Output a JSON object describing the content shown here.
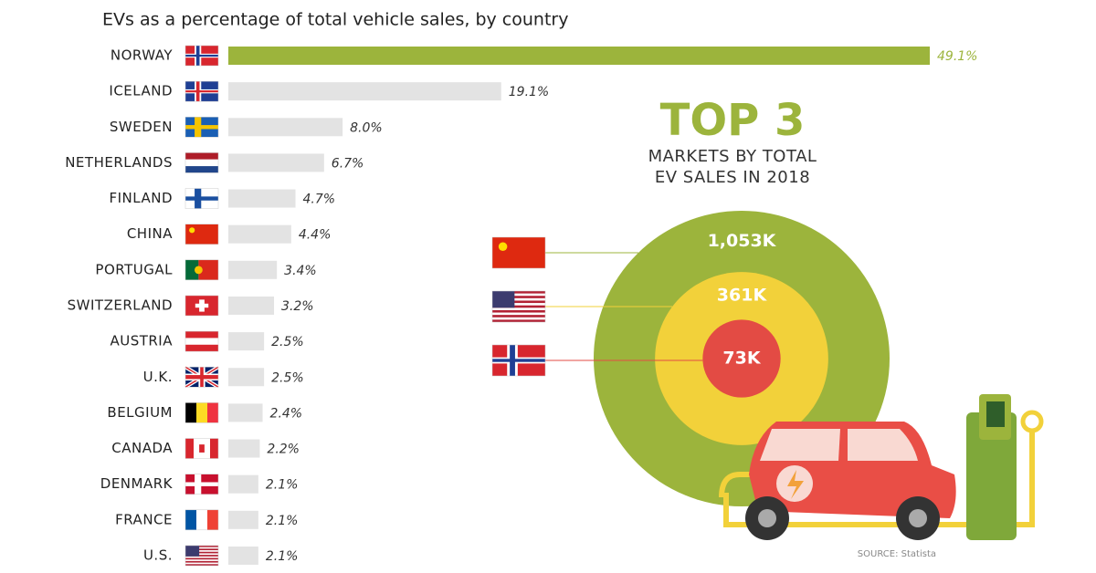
{
  "chart_data": [
    {
      "type": "hbar",
      "title": "EVs as a percentage of total vehicle sales, by country",
      "categories": [
        "NORWAY",
        "ICELAND",
        "SWEDEN",
        "NETHERLANDS",
        "FINLAND",
        "CHINA",
        "PORTUGAL",
        "SWITZERLAND",
        "AUSTRIA",
        "U.K.",
        "BELGIUM",
        "CANADA",
        "DENMARK",
        "FRANCE",
        "U.S."
      ],
      "values": [
        49.1,
        19.1,
        8.0,
        6.7,
        4.7,
        4.4,
        3.4,
        3.2,
        2.5,
        2.5,
        2.4,
        2.2,
        2.1,
        2.1,
        2.1
      ],
      "value_labels": [
        "49.1%",
        "19.1%",
        "8.0%",
        "6.7%",
        "4.7%",
        "4.4%",
        "3.4%",
        "3.2%",
        "2.5%",
        "2.5%",
        "2.4%",
        "2.2%",
        "2.1%",
        "2.1%",
        "2.1%"
      ],
      "colors": [
        "#9cb43c",
        "#e3e3e3",
        "#e3e3e3",
        "#e3e3e3",
        "#e3e3e3",
        "#e3e3e3",
        "#e3e3e3",
        "#e3e3e3",
        "#e3e3e3",
        "#e3e3e3",
        "#e3e3e3",
        "#e3e3e3",
        "#e3e3e3",
        "#e3e3e3",
        "#e3e3e3"
      ]
    },
    {
      "type": "nested",
      "title": "TOP 3",
      "subtitle": "MARKETS BY TOTAL EV SALES IN 2018",
      "values": [
        1053000,
        361000,
        73000
      ],
      "value_labels": [
        "1,053K",
        "361K",
        "73K"
      ],
      "colors": [
        "#9cb43c",
        "#f2d13a",
        "#e34b44"
      ]
    }
  ],
  "source": "SOURCE: Statista"
}
